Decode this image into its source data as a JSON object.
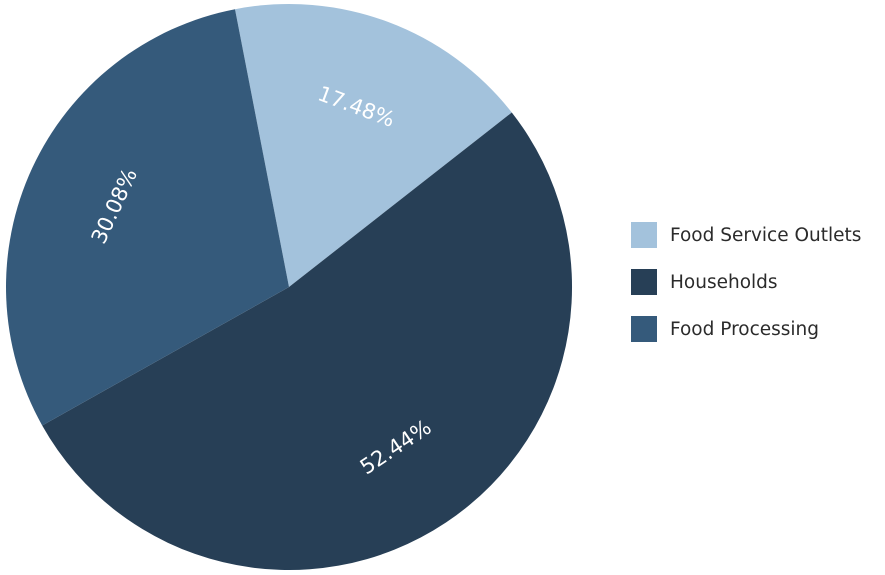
{
  "chart_data": {
    "type": "pie",
    "slices": [
      {
        "label": "Food Service Outlets",
        "value": 17.48,
        "display": "17.48%",
        "color": "#a3c2dc"
      },
      {
        "label": "Households",
        "value": 52.44,
        "display": "52.44%",
        "color": "#273f56"
      },
      {
        "label": "Food Processing",
        "value": 30.08,
        "display": "30.08%",
        "color": "#355a7b"
      }
    ],
    "legend_position": "right"
  }
}
